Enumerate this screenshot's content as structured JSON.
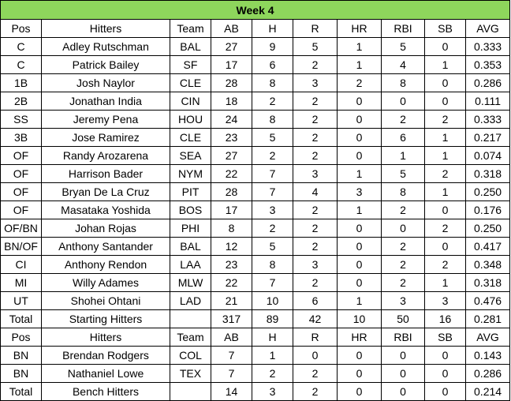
{
  "title": "Week 4",
  "colors": {
    "header_bg": "#8ed65c"
  },
  "starting": {
    "headers": [
      "Pos",
      "Hitters",
      "Team",
      "AB",
      "H",
      "R",
      "HR",
      "RBI",
      "SB",
      "AVG"
    ],
    "rows": [
      [
        "C",
        "Adley Rutschman",
        "BAL",
        "27",
        "9",
        "5",
        "1",
        "5",
        "0",
        "0.333"
      ],
      [
        "C",
        "Patrick Bailey",
        "SF",
        "17",
        "6",
        "2",
        "1",
        "4",
        "1",
        "0.353"
      ],
      [
        "1B",
        "Josh Naylor",
        "CLE",
        "28",
        "8",
        "3",
        "2",
        "8",
        "0",
        "0.286"
      ],
      [
        "2B",
        "Jonathan India",
        "CIN",
        "18",
        "2",
        "2",
        "0",
        "0",
        "0",
        "0.111"
      ],
      [
        "SS",
        "Jeremy Pena",
        "HOU",
        "24",
        "8",
        "2",
        "0",
        "2",
        "2",
        "0.333"
      ],
      [
        "3B",
        "Jose Ramirez",
        "CLE",
        "23",
        "5",
        "2",
        "0",
        "6",
        "1",
        "0.217"
      ],
      [
        "OF",
        "Randy Arozarena",
        "SEA",
        "27",
        "2",
        "2",
        "0",
        "1",
        "1",
        "0.074"
      ],
      [
        "OF",
        "Harrison Bader",
        "NYM",
        "22",
        "7",
        "3",
        "1",
        "5",
        "2",
        "0.318"
      ],
      [
        "OF",
        "Bryan De La Cruz",
        "PIT",
        "28",
        "7",
        "4",
        "3",
        "8",
        "1",
        "0.250"
      ],
      [
        "OF",
        "Masataka Yoshida",
        "BOS",
        "17",
        "3",
        "2",
        "1",
        "2",
        "0",
        "0.176"
      ],
      [
        "OF/BN",
        "Johan Rojas",
        "PHI",
        "8",
        "2",
        "2",
        "0",
        "0",
        "2",
        "0.250"
      ],
      [
        "BN/OF",
        "Anthony Santander",
        "BAL",
        "12",
        "5",
        "2",
        "0",
        "2",
        "0",
        "0.417"
      ],
      [
        "CI",
        "Anthony Rendon",
        "LAA",
        "23",
        "8",
        "3",
        "0",
        "2",
        "2",
        "0.348"
      ],
      [
        "MI",
        "Willy Adames",
        "MLW",
        "22",
        "7",
        "2",
        "0",
        "2",
        "1",
        "0.318"
      ],
      [
        "UT",
        "Shohei Ohtani",
        "LAD",
        "21",
        "10",
        "6",
        "1",
        "3",
        "3",
        "0.476"
      ]
    ],
    "total": [
      "Total",
      "Starting Hitters",
      "",
      "317",
      "89",
      "42",
      "10",
      "50",
      "16",
      "0.281"
    ]
  },
  "bench": {
    "headers": [
      "Pos",
      "Hitters",
      "Team",
      "AB",
      "H",
      "R",
      "HR",
      "RBI",
      "SB",
      "AVG"
    ],
    "rows": [
      [
        "BN",
        "Brendan Rodgers",
        "COL",
        "7",
        "1",
        "0",
        "0",
        "0",
        "0",
        "0.143"
      ],
      [
        "BN",
        "Nathaniel Lowe",
        "TEX",
        "7",
        "2",
        "2",
        "0",
        "0",
        "0",
        "0.286"
      ]
    ],
    "total": [
      "Total",
      "Bench Hitters",
      "",
      "14",
      "3",
      "2",
      "0",
      "0",
      "0",
      "0.214"
    ]
  }
}
